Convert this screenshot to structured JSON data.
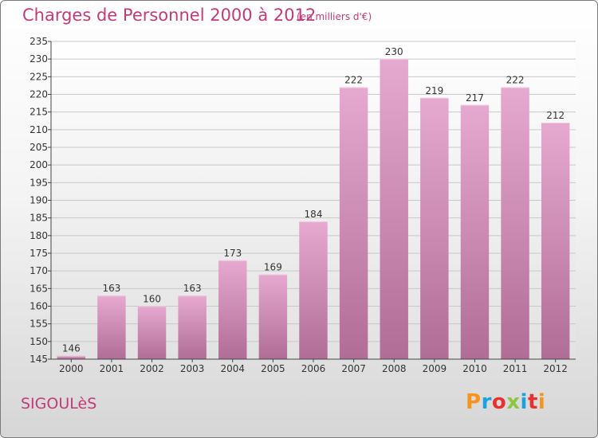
{
  "header": {
    "title": "Charges de Personnel 2000 à 2012",
    "unit": "(en milliers d'€)"
  },
  "footer": {
    "place": "SIGOULèS",
    "logo": "Proxiti",
    "logo_colors": [
      "#f7941d",
      "#1ea1e0",
      "#e8312f",
      "#8dc63f",
      "#1ea1e0",
      "#e8312f",
      "#f7941d"
    ]
  },
  "chart_data": {
    "type": "bar",
    "title": "Charges de Personnel 2000 à 2012",
    "subtitle": "(en milliers d'€)",
    "categories": [
      "2000",
      "2001",
      "2002",
      "2003",
      "2004",
      "2005",
      "2006",
      "2007",
      "2008",
      "2009",
      "2010",
      "2011",
      "2012"
    ],
    "values": [
      146,
      163,
      160,
      163,
      173,
      169,
      184,
      222,
      230,
      219,
      217,
      222,
      212
    ],
    "ylim": [
      145,
      235
    ],
    "yticks": [
      145,
      150,
      155,
      160,
      165,
      170,
      175,
      180,
      185,
      190,
      195,
      200,
      205,
      210,
      215,
      220,
      225,
      230,
      235
    ],
    "grid": true,
    "bar_color_top": "#e6a9cf",
    "bar_color_bottom": "#b06d96"
  }
}
